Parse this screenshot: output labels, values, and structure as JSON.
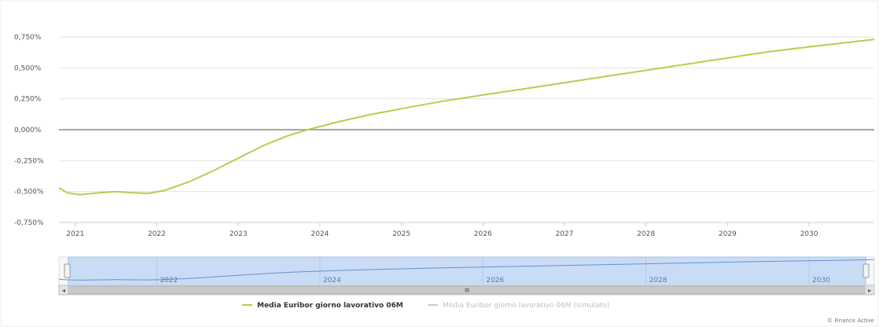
{
  "chart_data": {
    "type": "line",
    "x_ticks": [
      "2021",
      "2022",
      "2023",
      "2024",
      "2025",
      "2026",
      "2027",
      "2028",
      "2029",
      "2030"
    ],
    "y_ticks": [
      "0,750%",
      "0,500%",
      "0,250%",
      "0,000%",
      "-0,250%",
      "-0,500%",
      "-0,750%"
    ],
    "y_values": [
      0.75,
      0.5,
      0.25,
      0.0,
      -0.25,
      -0.5,
      -0.75
    ],
    "ylim": [
      -0.75,
      0.75
    ],
    "xlim": [
      2020.8,
      2030.8
    ],
    "grid": true,
    "legend_position": "bottom",
    "series": [
      {
        "name": "Media Euribor giorno lavorativo 06M",
        "color": "#b5cf4f",
        "visible": true,
        "points": [
          [
            2020.8,
            -0.47
          ],
          [
            2020.9,
            -0.51
          ],
          [
            2021.05,
            -0.525
          ],
          [
            2021.3,
            -0.51
          ],
          [
            2021.5,
            -0.5
          ],
          [
            2021.7,
            -0.51
          ],
          [
            2021.9,
            -0.515
          ],
          [
            2022.1,
            -0.49
          ],
          [
            2022.4,
            -0.42
          ],
          [
            2022.7,
            -0.33
          ],
          [
            2023.0,
            -0.23
          ],
          [
            2023.3,
            -0.13
          ],
          [
            2023.6,
            -0.05
          ],
          [
            2023.85,
            0.0
          ],
          [
            2024.2,
            0.06
          ],
          [
            2024.6,
            0.12
          ],
          [
            2025.0,
            0.17
          ],
          [
            2025.5,
            0.23
          ],
          [
            2026.0,
            0.28
          ],
          [
            2026.5,
            0.33
          ],
          [
            2027.0,
            0.38
          ],
          [
            2027.5,
            0.43
          ],
          [
            2028.0,
            0.48
          ],
          [
            2028.5,
            0.53
          ],
          [
            2029.0,
            0.58
          ],
          [
            2029.5,
            0.63
          ],
          [
            2030.0,
            0.67
          ],
          [
            2030.8,
            0.73
          ]
        ]
      },
      {
        "name": "Media Euribor giorno lavorativo 06M (simulato)",
        "color": "#c8c8c8",
        "visible": false,
        "points": []
      }
    ]
  },
  "navigator": {
    "labels": [
      "2022",
      "2024",
      "2026",
      "2028",
      "2030"
    ],
    "scroll_thumb_glyph": "≡",
    "left_arrow": "◂",
    "right_arrow": "▸"
  },
  "credit": "© Finance Active"
}
